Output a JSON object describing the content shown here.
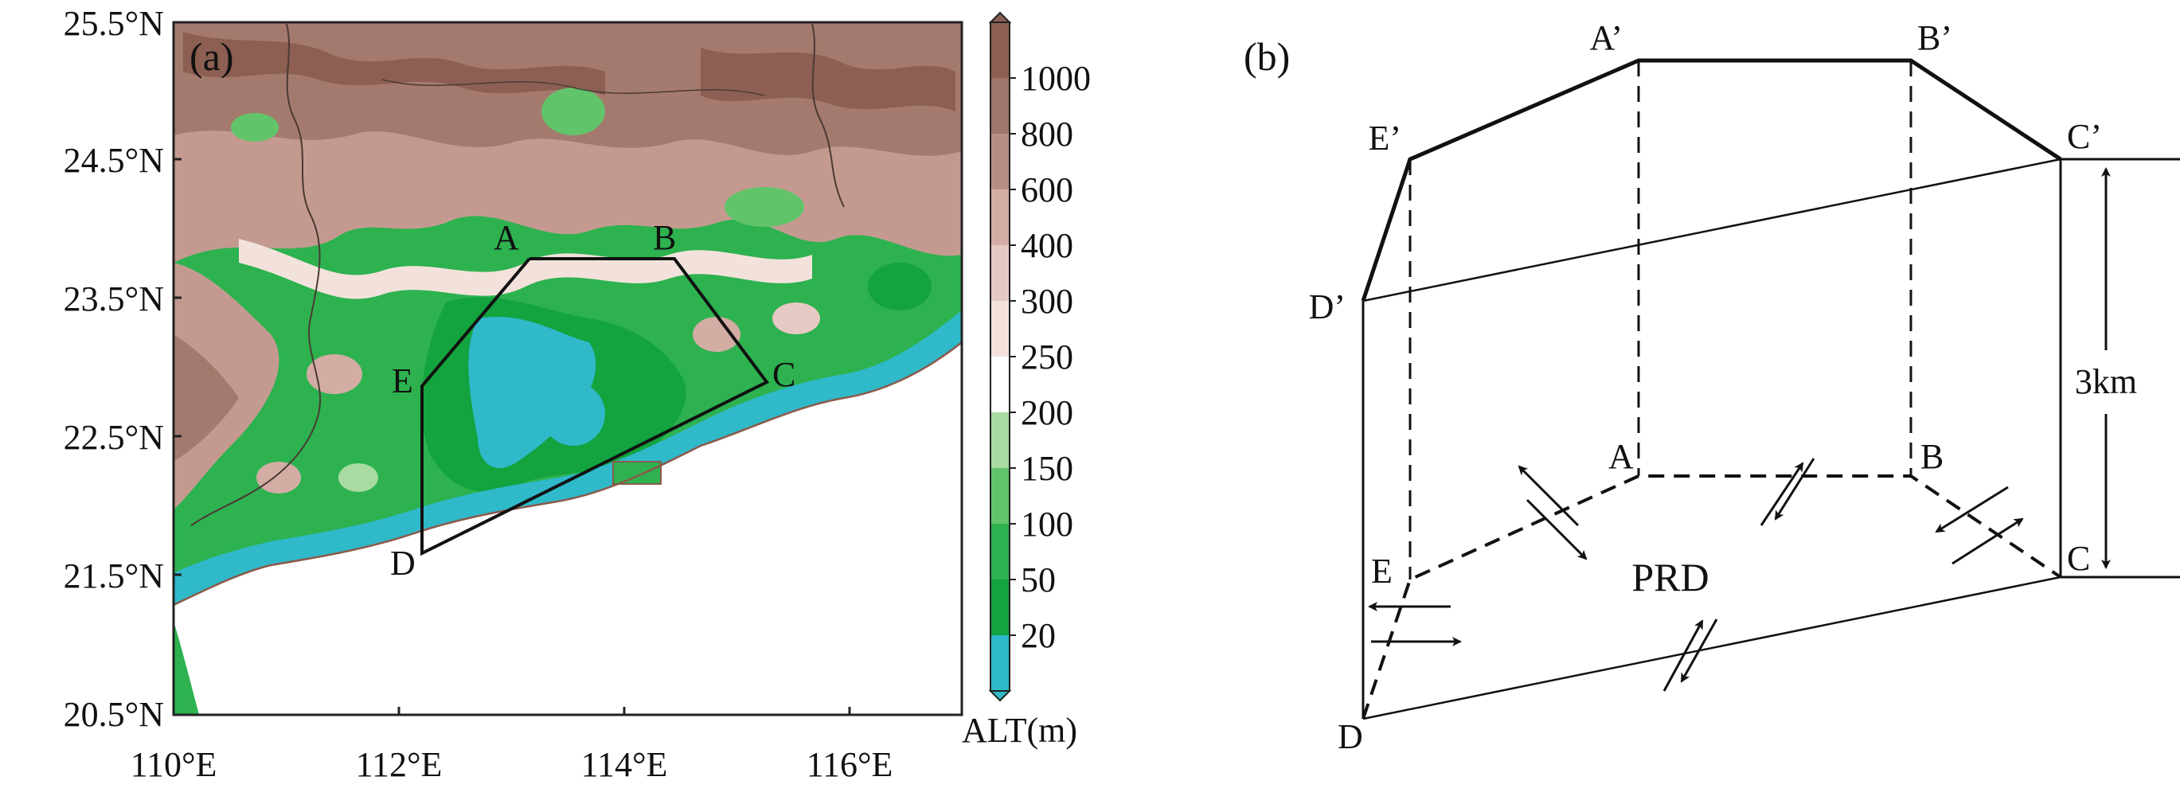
{
  "figure": {
    "panel_a": {
      "label": "(a)",
      "y_ticks": [
        "25.5°N",
        "24.5°N",
        "23.5°N",
        "22.5°N",
        "21.5°N",
        "20.5°N"
      ],
      "x_ticks": [
        "110°E",
        "112°E",
        "114°E",
        "116°E"
      ],
      "region_points": [
        "A",
        "B",
        "C",
        "D",
        "E"
      ],
      "colorbar": {
        "unit_label": "ALT(m)",
        "levels": [
          "1000",
          "800",
          "600",
          "400",
          "300",
          "250",
          "200",
          "150",
          "100",
          "50",
          "20"
        ],
        "colors": [
          "#8c5f52",
          "#a0766a",
          "#b88e84",
          "#d3aca4",
          "#e6c9c2",
          "#f3e2dc",
          "#ffffff",
          "#a7dba1",
          "#62c46a",
          "#2db24f",
          "#13a33f",
          "#2fb9c9"
        ]
      }
    },
    "panel_b": {
      "label": "(b)",
      "top_points": [
        "A’",
        "B’",
        "C’",
        "D’",
        "E’"
      ],
      "bottom_points": [
        "A",
        "B",
        "C",
        "D",
        "E"
      ],
      "height_label": "3km",
      "center_label": "PRD"
    }
  }
}
